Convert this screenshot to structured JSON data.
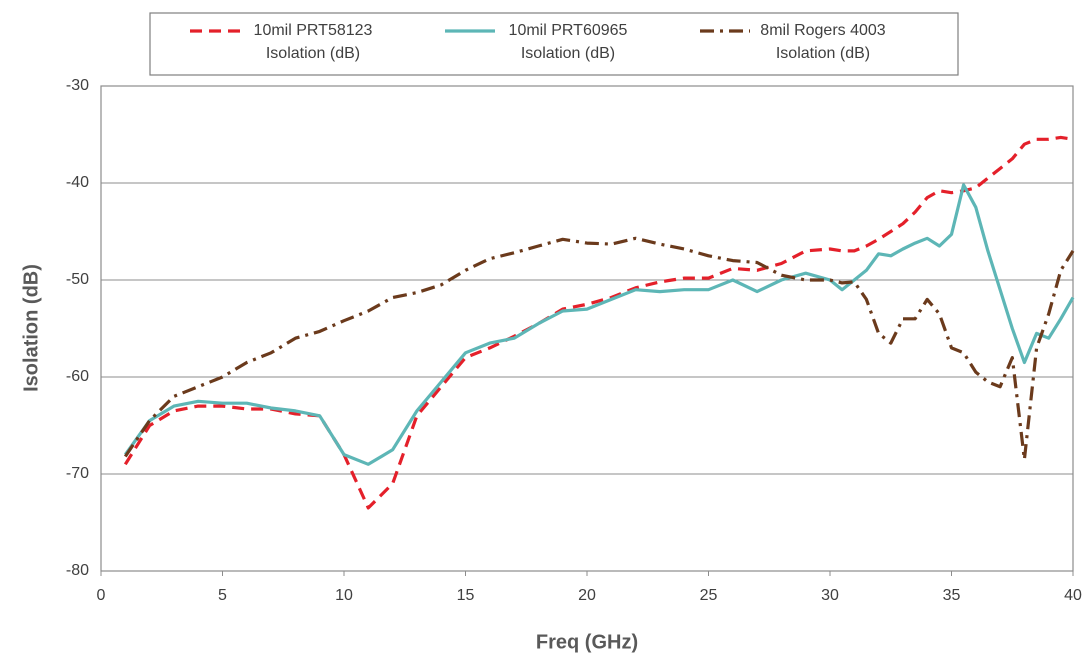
{
  "chart_data": {
    "type": "line",
    "xlabel": "Freq (GHz)",
    "ylabel": "Isolation (dB)",
    "x": [
      1,
      2,
      3,
      4,
      5,
      6,
      7,
      8,
      9,
      10,
      11,
      12,
      13,
      14,
      15,
      16,
      17,
      18,
      19,
      20,
      21,
      22,
      23,
      24,
      25,
      26,
      27,
      28,
      29,
      30,
      30.5,
      31,
      31.5,
      32,
      32.5,
      33,
      33.5,
      34,
      34.5,
      35,
      35.5,
      36,
      36.5,
      37,
      37.5,
      38,
      38.5,
      39,
      39.5,
      40
    ],
    "series": [
      {
        "name": "10mil PRT58123 Isolation (dB)",
        "color": "#e4202a",
        "dash": "dashed",
        "values": [
          -69,
          -65,
          -63.5,
          -63,
          -63,
          -63.3,
          -63.3,
          -63.8,
          -64,
          -68,
          -73.5,
          -71,
          -64,
          -61,
          -58,
          -57,
          -55.8,
          -54.5,
          -53,
          -52.5,
          -51.8,
          -50.8,
          -50.2,
          -49.8,
          -49.8,
          -48.8,
          -49,
          -48.3,
          -47,
          -46.8,
          -47,
          -47,
          -46.5,
          -45.8,
          -45,
          -44.2,
          -43,
          -41.5,
          -40.8,
          -41,
          -40.8,
          -40.5,
          -39.5,
          -38.5,
          -37.5,
          -36,
          -35.5,
          -35.5,
          -35.3,
          -35.5
        ]
      },
      {
        "name": "10mil PRT60965 Isolation (dB)",
        "color": "#5db6b6",
        "dash": "solid",
        "values": [
          -68,
          -64.5,
          -63,
          -62.5,
          -62.7,
          -62.7,
          -63.2,
          -63.5,
          -64,
          -68,
          -69,
          -67.5,
          -63.5,
          -60.5,
          -57.5,
          -56.5,
          -56,
          -54.5,
          -53.2,
          -53,
          -52,
          -51,
          -51.2,
          -51,
          -51,
          -50,
          -51.2,
          -50,
          -49.3,
          -50,
          -51,
          -50,
          -49,
          -47.3,
          -47.5,
          -46.8,
          -46.2,
          -45.7,
          -46.5,
          -45.3,
          -40.2,
          -42.5,
          -47,
          -51,
          -55,
          -58.5,
          -55.5,
          -56,
          -54,
          -51.8
        ]
      },
      {
        "name": "8mil Rogers 4003 Isolation (dB)",
        "color": "#6b3a1c",
        "dash": "dashdot",
        "values": [
          -68.2,
          -64.5,
          -62,
          -61,
          -60,
          -58.5,
          -57.5,
          -56,
          -55.3,
          -54.2,
          -53.2,
          -51.8,
          -51.3,
          -50.5,
          -49,
          -47.8,
          -47.2,
          -46.5,
          -45.8,
          -46.2,
          -46.3,
          -45.7,
          -46.3,
          -46.8,
          -47.5,
          -48,
          -48.2,
          -49.5,
          -50,
          -50,
          -50.3,
          -50.2,
          -52,
          -55.5,
          -56.5,
          -54,
          -54,
          -52,
          -53.5,
          -57,
          -57.5,
          -59.5,
          -60.5,
          -61,
          -58,
          -68.5,
          -57,
          -53.5,
          -49,
          -47
        ]
      }
    ],
    "xlim": [
      0,
      40
    ],
    "xticks": [
      0,
      5,
      10,
      15,
      20,
      25,
      30,
      35,
      40
    ],
    "ylim": [
      -80,
      -30
    ],
    "yticks": [
      -80,
      -70,
      -60,
      -50,
      -40,
      -30
    ],
    "grid": true,
    "legend": "top"
  }
}
